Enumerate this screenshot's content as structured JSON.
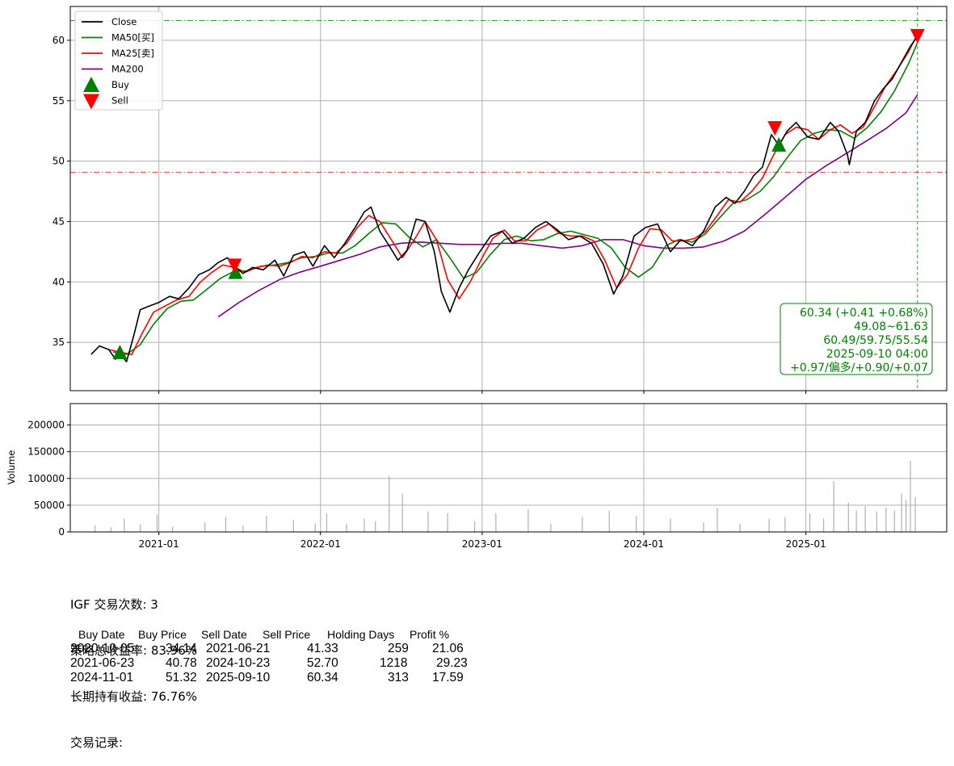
{
  "chart_data": [
    {
      "type": "line",
      "panel": "price",
      "xlim": [
        "2020-06-15",
        "2025-11-15"
      ],
      "ylim": [
        31,
        62.8
      ],
      "y_ticks": [
        35,
        40,
        45,
        50,
        55,
        60
      ],
      "x_ticks": [
        "2021-01",
        "2022-01",
        "2023-01",
        "2024-01",
        "2025-01"
      ],
      "grid": true,
      "legend_position": "top-left",
      "series": [
        {
          "name": "Close",
          "color": "#000000",
          "x": [
            "2020-08-01",
            "2020-08-20",
            "2020-09-10",
            "2020-09-25",
            "2020-10-05",
            "2020-10-20",
            "2020-11-05",
            "2020-11-20",
            "2020-12-10",
            "2021-01-01",
            "2021-01-25",
            "2021-02-15",
            "2021-03-10",
            "2021-04-01",
            "2021-04-25",
            "2021-05-15",
            "2021-06-05",
            "2021-06-21",
            "2021-07-10",
            "2021-08-01",
            "2021-08-25",
            "2021-09-20",
            "2021-10-10",
            "2021-11-01",
            "2021-11-25",
            "2021-12-15",
            "2022-01-10",
            "2022-02-01",
            "2022-02-25",
            "2022-03-20",
            "2022-04-10",
            "2022-04-25",
            "2022-05-15",
            "2022-06-05",
            "2022-06-25",
            "2022-07-15",
            "2022-08-05",
            "2022-08-25",
            "2022-09-15",
            "2022-10-01",
            "2022-10-20",
            "2022-11-10",
            "2022-12-01",
            "2022-12-25",
            "2023-01-20",
            "2023-02-15",
            "2023-03-10",
            "2023-04-05",
            "2023-05-01",
            "2023-05-25",
            "2023-06-20",
            "2023-07-15",
            "2023-08-10",
            "2023-09-05",
            "2023-10-01",
            "2023-10-25",
            "2023-11-15",
            "2023-12-10",
            "2024-01-05",
            "2024-02-01",
            "2024-03-01",
            "2024-03-25",
            "2024-04-20",
            "2024-05-15",
            "2024-06-10",
            "2024-07-05",
            "2024-07-25",
            "2024-08-15",
            "2024-09-05",
            "2024-09-25",
            "2024-10-15",
            "2024-11-01",
            "2024-11-20",
            "2024-12-10",
            "2025-01-05",
            "2025-01-30",
            "2025-02-25",
            "2025-03-15",
            "2025-04-05",
            "2025-04-09",
            "2025-04-25",
            "2025-05-15",
            "2025-06-05",
            "2025-06-25",
            "2025-07-15",
            "2025-08-05",
            "2025-08-25",
            "2025-09-10"
          ],
          "values": [
            34.0,
            34.7,
            34.4,
            33.6,
            34.1,
            33.4,
            35.5,
            37.7,
            38.0,
            38.3,
            38.8,
            38.6,
            39.5,
            40.6,
            41.0,
            41.6,
            42.0,
            41.3,
            40.7,
            41.2,
            41.0,
            41.8,
            40.5,
            42.2,
            42.5,
            41.3,
            43.0,
            42.0,
            43.2,
            44.5,
            45.8,
            46.2,
            44.2,
            43.0,
            41.8,
            42.6,
            45.2,
            45.0,
            42.5,
            39.2,
            37.5,
            39.5,
            41.0,
            42.4,
            43.8,
            44.2,
            43.2,
            43.6,
            44.5,
            45.0,
            44.3,
            43.5,
            43.8,
            43.2,
            41.5,
            39.0,
            40.5,
            43.8,
            44.5,
            44.8,
            42.5,
            43.5,
            43.0,
            44.2,
            46.2,
            47.0,
            46.5,
            47.5,
            48.8,
            49.5,
            52.2,
            51.3,
            52.5,
            53.2,
            52.0,
            51.8,
            53.2,
            52.5,
            50.5,
            49.7,
            52.5,
            53.2,
            55.0,
            56.0,
            56.8,
            58.2,
            59.5,
            60.34
          ]
        },
        {
          "name": "MA50[买]",
          "color": "#008000",
          "x": [
            "2020-09-20",
            "2020-10-20",
            "2020-11-20",
            "2020-12-20",
            "2021-01-20",
            "2021-02-20",
            "2021-03-20",
            "2021-04-20",
            "2021-05-20",
            "2021-06-21",
            "2021-07-20",
            "2021-08-20",
            "2021-09-20",
            "2021-10-20",
            "2021-11-20",
            "2021-12-20",
            "2022-01-20",
            "2022-02-20",
            "2022-03-20",
            "2022-04-20",
            "2022-05-20",
            "2022-06-20",
            "2022-07-20",
            "2022-08-20",
            "2022-09-20",
            "2022-10-20",
            "2022-11-20",
            "2022-12-20",
            "2023-01-20",
            "2023-02-20",
            "2023-03-20",
            "2023-04-20",
            "2023-05-20",
            "2023-06-20",
            "2023-07-20",
            "2023-08-20",
            "2023-09-20",
            "2023-10-20",
            "2023-11-20",
            "2023-12-20",
            "2024-01-20",
            "2024-02-20",
            "2024-03-20",
            "2024-04-20",
            "2024-05-20",
            "2024-06-20",
            "2024-07-20",
            "2024-08-20",
            "2024-09-20",
            "2024-10-20",
            "2024-11-20",
            "2024-12-20",
            "2025-01-20",
            "2025-02-20",
            "2025-03-20",
            "2025-04-20",
            "2025-05-20",
            "2025-06-20",
            "2025-07-20",
            "2025-08-20",
            "2025-09-10"
          ],
          "values": [
            34.2,
            34.0,
            34.8,
            36.5,
            37.8,
            38.4,
            38.5,
            39.4,
            40.3,
            40.9,
            40.9,
            41.3,
            41.4,
            41.6,
            42.0,
            42.1,
            42.4,
            42.4,
            43.0,
            44.0,
            44.9,
            44.8,
            43.7,
            42.9,
            43.5,
            42.0,
            40.3,
            40.8,
            42.3,
            43.5,
            43.8,
            43.4,
            43.5,
            44.0,
            44.2,
            43.9,
            43.6,
            42.8,
            41.2,
            40.4,
            41.2,
            43.0,
            43.5,
            43.3,
            44.0,
            45.3,
            46.5,
            46.8,
            47.5,
            48.7,
            50.3,
            51.7,
            52.3,
            52.6,
            52.5,
            51.9,
            52.8,
            54.1,
            55.8,
            58.0,
            59.8
          ]
        },
        {
          "name": "MA25[卖]",
          "color": "#ff0000",
          "x": [
            "2020-09-10",
            "2020-10-05",
            "2020-11-01",
            "2020-11-25",
            "2020-12-20",
            "2021-01-15",
            "2021-02-10",
            "2021-03-10",
            "2021-04-05",
            "2021-05-01",
            "2021-05-25",
            "2021-06-21",
            "2021-07-15",
            "2021-08-10",
            "2021-09-05",
            "2021-10-01",
            "2021-10-25",
            "2021-11-20",
            "2021-12-15",
            "2022-01-10",
            "2022-02-05",
            "2022-03-01",
            "2022-03-25",
            "2022-04-20",
            "2022-05-15",
            "2022-06-10",
            "2022-07-05",
            "2022-08-01",
            "2022-08-25",
            "2022-09-20",
            "2022-10-15",
            "2022-11-10",
            "2022-12-05",
            "2023-01-01",
            "2023-01-25",
            "2023-02-20",
            "2023-03-15",
            "2023-04-10",
            "2023-05-05",
            "2023-06-01",
            "2023-06-25",
            "2023-07-20",
            "2023-08-15",
            "2023-09-10",
            "2023-10-05",
            "2023-11-01",
            "2023-11-25",
            "2023-12-20",
            "2024-01-15",
            "2024-02-10",
            "2024-03-05",
            "2024-04-01",
            "2024-04-25",
            "2024-05-20",
            "2024-06-15",
            "2024-07-10",
            "2024-08-05",
            "2024-09-01",
            "2024-09-25",
            "2024-10-20",
            "2024-11-15",
            "2024-12-10",
            "2025-01-05",
            "2025-01-30",
            "2025-02-25",
            "2025-03-20",
            "2025-04-15",
            "2025-05-10",
            "2025-06-05",
            "2025-06-30",
            "2025-07-25",
            "2025-08-20",
            "2025-09-10"
          ],
          "values": [
            34.4,
            34.2,
            34.0,
            35.8,
            37.5,
            38.0,
            38.5,
            38.8,
            40.0,
            40.8,
            41.4,
            41.2,
            40.8,
            41.2,
            41.4,
            41.3,
            41.6,
            42.1,
            42.0,
            42.5,
            42.4,
            43.2,
            44.5,
            45.5,
            45.0,
            43.5,
            42.0,
            43.5,
            45.0,
            43.5,
            40.2,
            38.6,
            40.0,
            42.0,
            43.6,
            44.3,
            43.4,
            43.4,
            44.3,
            44.8,
            44.0,
            43.8,
            43.8,
            43.4,
            41.8,
            39.5,
            40.6,
            42.8,
            44.4,
            44.3,
            43.4,
            43.4,
            43.6,
            44.2,
            45.5,
            46.8,
            46.6,
            47.5,
            48.6,
            50.5,
            52.2,
            52.8,
            52.6,
            51.8,
            52.6,
            53.0,
            52.3,
            52.8,
            54.5,
            56.2,
            57.5,
            59.0,
            60.5
          ]
        },
        {
          "name": "MA200",
          "color": "#800080",
          "x": [
            "2021-05-15",
            "2021-07-01",
            "2021-08-15",
            "2021-10-01",
            "2021-11-15",
            "2022-01-01",
            "2022-02-15",
            "2022-04-01",
            "2022-05-15",
            "2022-07-01",
            "2022-08-15",
            "2022-10-01",
            "2022-11-15",
            "2023-01-01",
            "2023-02-15",
            "2023-04-01",
            "2023-05-15",
            "2023-07-01",
            "2023-08-15",
            "2023-10-01",
            "2023-11-15",
            "2024-01-01",
            "2024-02-15",
            "2024-04-01",
            "2024-05-15",
            "2024-07-01",
            "2024-08-15",
            "2024-10-01",
            "2024-11-15",
            "2025-01-01",
            "2025-02-15",
            "2025-04-01",
            "2025-05-15",
            "2025-07-01",
            "2025-08-15",
            "2025-09-10"
          ],
          "values": [
            37.1,
            38.3,
            39.3,
            40.2,
            40.8,
            41.3,
            41.8,
            42.3,
            42.9,
            43.2,
            43.3,
            43.2,
            43.1,
            43.1,
            43.2,
            43.2,
            43.0,
            42.8,
            43.0,
            43.5,
            43.5,
            43.0,
            42.8,
            42.8,
            42.9,
            43.4,
            44.2,
            45.6,
            47.0,
            48.5,
            49.6,
            50.6,
            51.6,
            52.7,
            54.0,
            55.5
          ]
        }
      ],
      "markers": {
        "buy": [
          {
            "x": "2020-10-05",
            "y": 34.14
          },
          {
            "x": "2021-06-23",
            "y": 40.78
          },
          {
            "x": "2024-11-01",
            "y": 51.32
          }
        ],
        "sell": [
          {
            "x": "2021-06-21",
            "y": 41.33
          },
          {
            "x": "2024-10-23",
            "y": 52.7
          },
          {
            "x": "2025-09-10",
            "y": 60.34
          }
        ]
      },
      "hlines": [
        {
          "y": 61.63,
          "color": "#2ca02c"
        },
        {
          "y": 49.08,
          "color": "#ff3333"
        }
      ],
      "vline": {
        "x": "2025-09-10",
        "color": "#2ca02c"
      },
      "info_box": {
        "lines": [
          "60.34 (+0.41 +0.68%)",
          "49.08~61.63",
          "60.49/59.75/55.54",
          "2025-09-10 04:00",
          "+0.97/偏多/+0.90/+0.07"
        ],
        "color": "#008000"
      }
    },
    {
      "type": "bar",
      "panel": "volume",
      "ylabel": "Volume",
      "ylim": [
        0,
        240000
      ],
      "y_ticks": [
        0,
        50000,
        100000,
        150000,
        200000
      ],
      "y_tick_labels": [
        "0",
        "50000",
        "100000",
        "150000",
        "200000"
      ],
      "color": "#b0b0b0",
      "x": [
        "2020-08-10",
        "2020-09-15",
        "2020-10-15",
        "2020-11-20",
        "2020-12-28",
        "2021-02-01",
        "2021-04-15",
        "2021-06-01",
        "2021-07-10",
        "2021-09-01",
        "2021-11-01",
        "2021-12-20",
        "2022-01-15",
        "2022-03-01",
        "2022-04-10",
        "2022-05-05",
        "2022-06-05",
        "2022-07-05",
        "2022-09-01",
        "2022-10-15",
        "2022-12-15",
        "2023-02-01",
        "2023-04-15",
        "2023-06-05",
        "2023-08-15",
        "2023-10-15",
        "2023-12-15",
        "2024-03-01",
        "2024-05-15",
        "2024-06-15",
        "2024-08-05",
        "2024-10-10",
        "2024-11-15",
        "2025-01-10",
        "2025-02-10",
        "2025-03-05",
        "2025-04-07",
        "2025-04-25",
        "2025-05-15",
        "2025-06-10",
        "2025-07-01",
        "2025-07-20",
        "2025-08-05",
        "2025-08-15",
        "2025-08-25",
        "2025-09-05"
      ],
      "values": [
        12000,
        9000,
        25000,
        14000,
        32000,
        10000,
        18000,
        28000,
        12000,
        30000,
        22000,
        16000,
        34000,
        15000,
        25000,
        20000,
        105000,
        72000,
        38000,
        35000,
        20000,
        35000,
        42000,
        15000,
        28000,
        40000,
        30000,
        25000,
        18000,
        45000,
        15000,
        25000,
        28000,
        35000,
        25000,
        95000,
        55000,
        40000,
        48000,
        38000,
        45000,
        40000,
        72000,
        60000,
        133000,
        65000
      ]
    }
  ],
  "legend": {
    "items": [
      {
        "label": "Close",
        "kind": "line",
        "color": "#000000"
      },
      {
        "label": "MA50[买]",
        "kind": "line",
        "color": "#008000"
      },
      {
        "label": "MA25[卖]",
        "kind": "line",
        "color": "#ff0000"
      },
      {
        "label": "MA200",
        "kind": "line",
        "color": "#800080"
      },
      {
        "label": "Buy",
        "kind": "triangle-up",
        "color": "#008000"
      },
      {
        "label": "Sell",
        "kind": "triangle-down",
        "color": "#ff0000"
      }
    ]
  },
  "summary": {
    "trade_count": "IGF 交易次数: 3",
    "strategy_return": "策略总收益率: 83.96%",
    "hold_return": "长期持有收益: 76.76%",
    "records_title": "交易记录:"
  },
  "trades": {
    "headers": [
      "Buy Date",
      "Buy Price",
      "Sell Date",
      "Sell Price",
      "Holding Days",
      "Profit %"
    ],
    "rows": [
      [
        "2020-10-05",
        "34.14",
        "2021-06-21",
        "41.33",
        "259",
        "21.06"
      ],
      [
        "2021-06-23",
        "40.78",
        "2024-10-23",
        "52.70",
        "1218",
        "29.23"
      ],
      [
        "2024-11-01",
        "51.32",
        "2025-09-10",
        "60.34",
        "313",
        "17.59"
      ]
    ]
  }
}
